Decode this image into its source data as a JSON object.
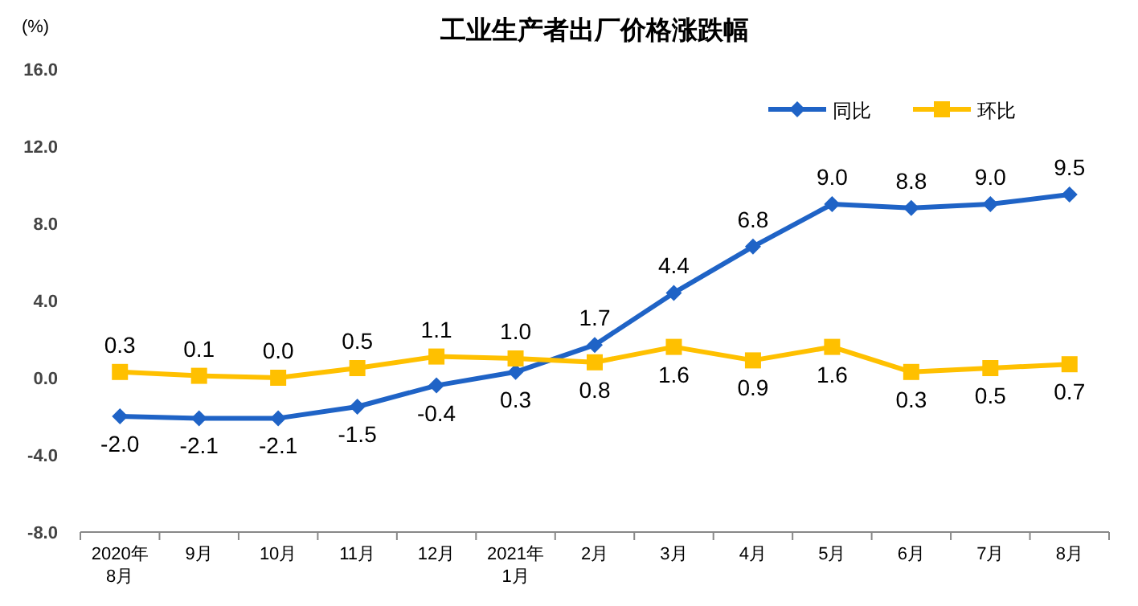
{
  "chart_data": {
    "type": "line",
    "title": "工业生产者出厂价格涨跌幅",
    "ylabel": "(%)",
    "categories": [
      "2020年\n8月",
      "9月",
      "10月",
      "11月",
      "12月",
      "2021年\n1月",
      "2月",
      "3月",
      "4月",
      "5月",
      "6月",
      "7月",
      "8月"
    ],
    "series": [
      {
        "name": "同比",
        "color": "#1f63c6",
        "marker": "diamond",
        "values": [
          -2.0,
          -2.1,
          -2.1,
          -1.5,
          -0.4,
          0.3,
          1.7,
          4.4,
          6.8,
          9.0,
          8.8,
          9.0,
          9.5
        ],
        "value_labels": [
          "-2.0",
          "-2.1",
          "-2.1",
          "-1.5",
          "-0.4",
          "0.3",
          "1.7",
          "4.4",
          "6.8",
          "9.0",
          "8.8",
          "9.0",
          "9.5"
        ]
      },
      {
        "name": "环比",
        "color": "#ffc000",
        "marker": "square",
        "values": [
          0.3,
          0.1,
          0.0,
          0.5,
          1.1,
          1.0,
          0.8,
          1.6,
          0.9,
          1.6,
          0.3,
          0.5,
          0.7
        ],
        "value_labels": [
          "0.3",
          "0.1",
          "0.0",
          "0.5",
          "1.1",
          "1.0",
          "0.8",
          "1.6",
          "0.9",
          "1.6",
          "0.3",
          "0.5",
          "0.7"
        ]
      }
    ],
    "ylim": [
      -8,
      16
    ],
    "yticks": [
      {
        "value": -8,
        "label": "-8.0"
      },
      {
        "value": -4,
        "label": "-4.0"
      },
      {
        "value": 0,
        "label": "0.0"
      },
      {
        "value": 4,
        "label": "4.0"
      },
      {
        "value": 8,
        "label": "8.0"
      },
      {
        "value": 12,
        "label": "12.0"
      },
      {
        "value": 16,
        "label": "16.0"
      }
    ],
    "legend": "top right",
    "grid": false,
    "line_style": "solid"
  }
}
